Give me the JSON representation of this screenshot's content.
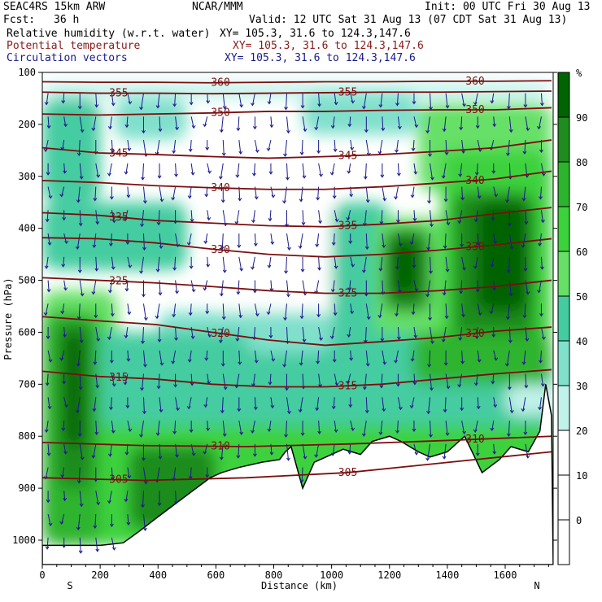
{
  "header": {
    "model": "SEAC4RS 15km ARW",
    "org": "NCAR/MMM",
    "init": "Init: 00 UTC Fri 30 Aug 13",
    "fcst_label": "Fcst:",
    "fcst_value": "36 h",
    "valid": "Valid: 12 UTC Sat 31 Aug 13 (07 CDT Sat 31 Aug 13)",
    "fields": [
      {
        "name": "Relative humidity (w.r.t. water)",
        "xy": "XY= 105.3, 31.6 to 124.3,147.6",
        "color": "#000000"
      },
      {
        "name": "Potential temperature",
        "xy": "XY= 105.3, 31.6 to 124.3,147.6",
        "color": "#8b1a1a"
      },
      {
        "name": "Circulation vectors",
        "xy": "XY= 105.3, 31.6 to 124.3,147.6",
        "color": "#1a1a8b"
      }
    ]
  },
  "chart_data": {
    "type": "heatmap",
    "xlabel": "Distance (km)",
    "ylabel": "Pressure (hPa)",
    "xlim": [
      0,
      1760
    ],
    "ylim": [
      1000,
      100
    ],
    "x_ticks": [
      0,
      200,
      400,
      600,
      800,
      1000,
      1200,
      1400,
      1600
    ],
    "y_ticks": [
      100,
      200,
      300,
      400,
      500,
      600,
      700,
      800,
      900,
      1000
    ],
    "x_end_labels": {
      "left": "S",
      "right": "N"
    },
    "colorbar": {
      "unit": "%",
      "levels": [
        90,
        80,
        70,
        60,
        50,
        40,
        30,
        20,
        10,
        0
      ],
      "colors": [
        "#006400",
        "#1e8c1e",
        "#2db42d",
        "#3cd23c",
        "#66e066",
        "#44cca0",
        "#80e0cc",
        "#c0f2ea",
        "#ffffff",
        "#ffffff",
        "#ffffff"
      ]
    },
    "theta_contours": [
      {
        "label": "305",
        "p": [
          880,
          885,
          880,
          870,
          850,
          830
        ]
      },
      {
        "label": "310",
        "p": [
          812,
          818,
          820,
          815,
          808,
          800
        ]
      },
      {
        "label": "315",
        "p": [
          675,
          685,
          690,
          700,
          705,
          705,
          700,
          690,
          680,
          672
        ]
      },
      {
        "label": "320",
        "p": [
          570,
          578,
          585,
          600,
          615,
          625,
          618,
          610,
          598,
          590
        ]
      },
      {
        "label": "325",
        "p": [
          495,
          500,
          505,
          512,
          520,
          525,
          525,
          520,
          512,
          500
        ]
      },
      {
        "label": "330",
        "p": [
          418,
          420,
          428,
          440,
          450,
          455,
          450,
          442,
          432,
          420
        ]
      },
      {
        "label": "335",
        "p": [
          370,
          375,
          385,
          390,
          395,
          397,
          392,
          385,
          372,
          360
        ]
      },
      {
        "label": "340",
        "p": [
          308,
          312,
          318,
          322,
          325,
          325,
          320,
          313,
          305,
          290
        ]
      },
      {
        "label": "345",
        "p": [
          245,
          255,
          258,
          262,
          265,
          262,
          258,
          252,
          245,
          230
        ]
      },
      {
        "label": "350",
        "p": [
          180,
          182,
          180,
          178,
          175,
          175,
          173,
          172,
          172,
          168
        ]
      },
      {
        "label": "355",
        "p": [
          138,
          140,
          140,
          141,
          140,
          139,
          138,
          138,
          137,
          136
        ]
      },
      {
        "label": "360",
        "p": [
          118,
          119,
          119,
          120,
          119,
          118,
          118,
          117,
          117,
          116
        ]
      }
    ],
    "terrain": {
      "x": [
        0,
        100,
        200,
        280,
        330,
        400,
        460,
        520,
        580,
        620,
        680,
        760,
        820,
        840,
        860,
        900,
        940,
        980,
        1040,
        1100,
        1140,
        1200,
        1240,
        1300,
        1340,
        1400,
        1460,
        1520,
        1580,
        1620,
        1680,
        1720,
        1740,
        1760
      ],
      "p": [
        1010,
        1010,
        1010,
        1005,
        985,
        955,
        930,
        905,
        880,
        870,
        860,
        850,
        845,
        830,
        820,
        900,
        850,
        840,
        825,
        835,
        810,
        800,
        810,
        830,
        840,
        830,
        800,
        870,
        845,
        820,
        830,
        790,
        700,
        760
      ]
    }
  }
}
